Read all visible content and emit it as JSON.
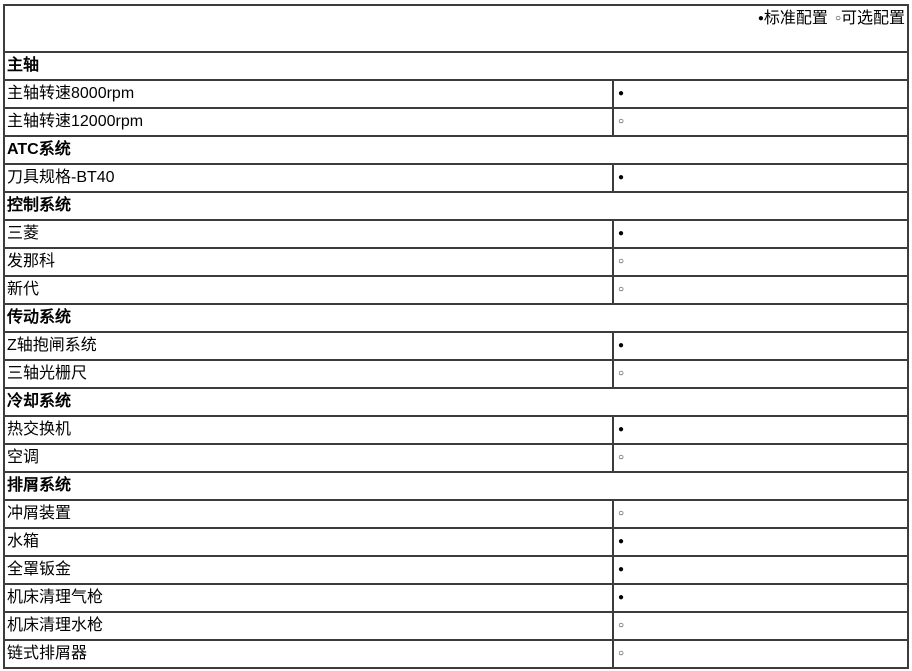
{
  "colors": {
    "background": "#ffffff",
    "text": "#000000",
    "table_border": "#3c3c3c"
  },
  "legend": {
    "standard_marker": "●",
    "standard_label": "标准配置",
    "optional_marker": "○",
    "optional_label": "可选配置"
  },
  "table": {
    "sections": [
      {
        "title": "主轴",
        "items": [
          {
            "label": "主轴转速8000rpm",
            "marker": "●",
            "type": "standard"
          },
          {
            "label": "主轴转速12000rpm",
            "marker": "○",
            "type": "optional"
          }
        ]
      },
      {
        "title": "ATC系统",
        "items": [
          {
            "label": "刀具规格-BT40",
            "marker": "●",
            "type": "standard"
          }
        ]
      },
      {
        "title": "控制系统",
        "items": [
          {
            "label": "三菱",
            "marker": "●",
            "type": "standard"
          },
          {
            "label": "发那科",
            "marker": "○",
            "type": "optional"
          },
          {
            "label": "新代",
            "marker": "○",
            "type": "optional"
          }
        ]
      },
      {
        "title": "传动系统",
        "items": [
          {
            "label": "Z轴抱闸系统",
            "marker": "●",
            "type": "standard"
          },
          {
            "label": "三轴光栅尺",
            "marker": "○",
            "type": "optional"
          }
        ]
      },
      {
        "title": "冷却系统",
        "items": [
          {
            "label": "热交换机",
            "marker": "●",
            "type": "standard"
          },
          {
            "label": "空调",
            "marker": "○",
            "type": "optional"
          }
        ]
      },
      {
        "title": "排屑系统",
        "items": [
          {
            "label": "冲屑装置",
            "marker": "○",
            "type": "optional"
          },
          {
            "label": "水箱",
            "marker": "●",
            "type": "standard"
          },
          {
            "label": "全罩钣金",
            "marker": "●",
            "type": "standard"
          },
          {
            "label": "机床清理气枪",
            "marker": "●",
            "type": "standard"
          },
          {
            "label": "机床清理水枪",
            "marker": "○",
            "type": "optional"
          },
          {
            "label": "链式排屑器",
            "marker": "○",
            "type": "optional"
          }
        ]
      }
    ]
  }
}
